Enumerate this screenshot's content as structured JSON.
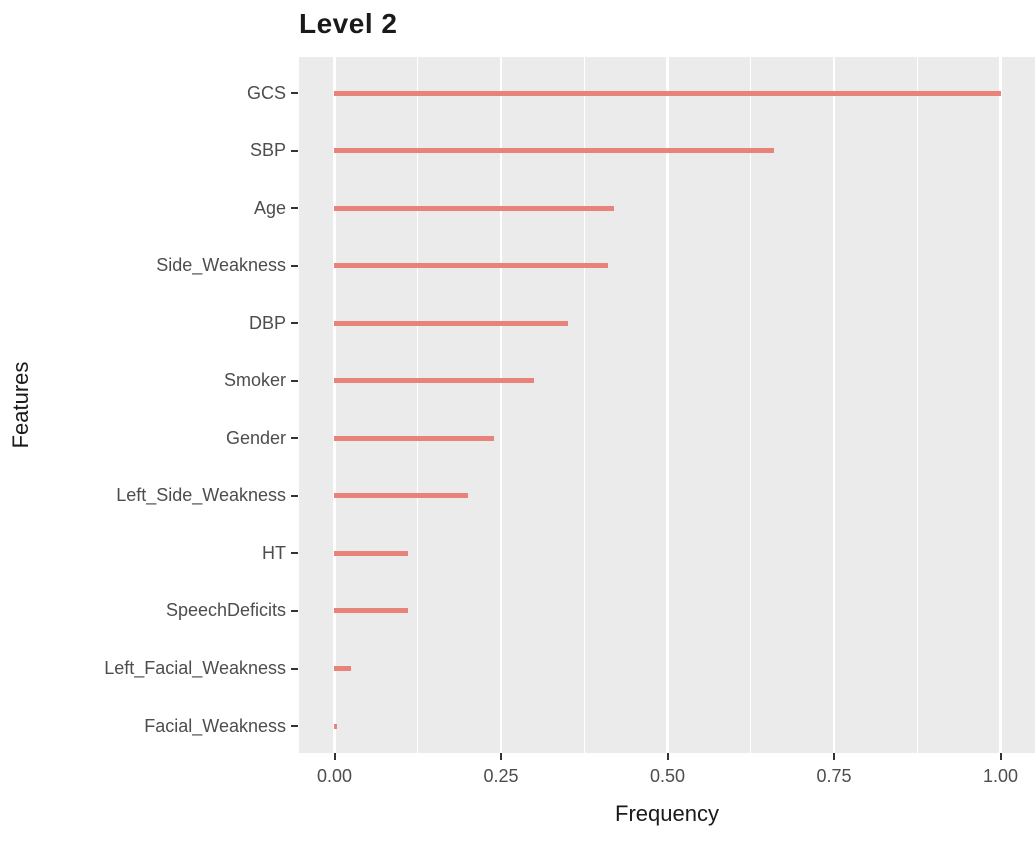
{
  "chart_data": {
    "type": "bar",
    "orientation": "horizontal",
    "title": "Level 2",
    "xlabel": "Frequency",
    "ylabel": "Features",
    "categories": [
      "GCS",
      "SBP",
      "Age",
      "Side_Weakness",
      "DBP",
      "Smoker",
      "Gender",
      "Left_Side_Weakness",
      "HT",
      "SpeechDeficits",
      "Left_Facial_Weakness",
      "Facial_Weakness"
    ],
    "values": [
      1.0,
      0.66,
      0.42,
      0.41,
      0.35,
      0.3,
      0.24,
      0.2,
      0.11,
      0.11,
      0.025,
      0.004
    ],
    "xlim": [
      0,
      1.0
    ],
    "x_ticks": [
      0,
      0.25,
      0.5,
      0.75,
      1.0
    ],
    "x_tick_labels": [
      "0.00",
      "0.25",
      "0.50",
      "0.75",
      "1.00"
    ],
    "x_minor_ticks": [
      0.125,
      0.375,
      0.625,
      0.875
    ],
    "grid": "vertical white gridlines on gray panel, no horizontal gridlines",
    "legend": "none",
    "colors": {
      "bar": "#E8837B",
      "panel_background": "#EBEBEB",
      "gridline": "#FFFFFF",
      "tick_label": "#4D4D4D",
      "axis_tick": "#333333",
      "title": "#1A1A1A",
      "axis_title": "#1A1A1A",
      "page_background": "#FFFFFF"
    }
  }
}
